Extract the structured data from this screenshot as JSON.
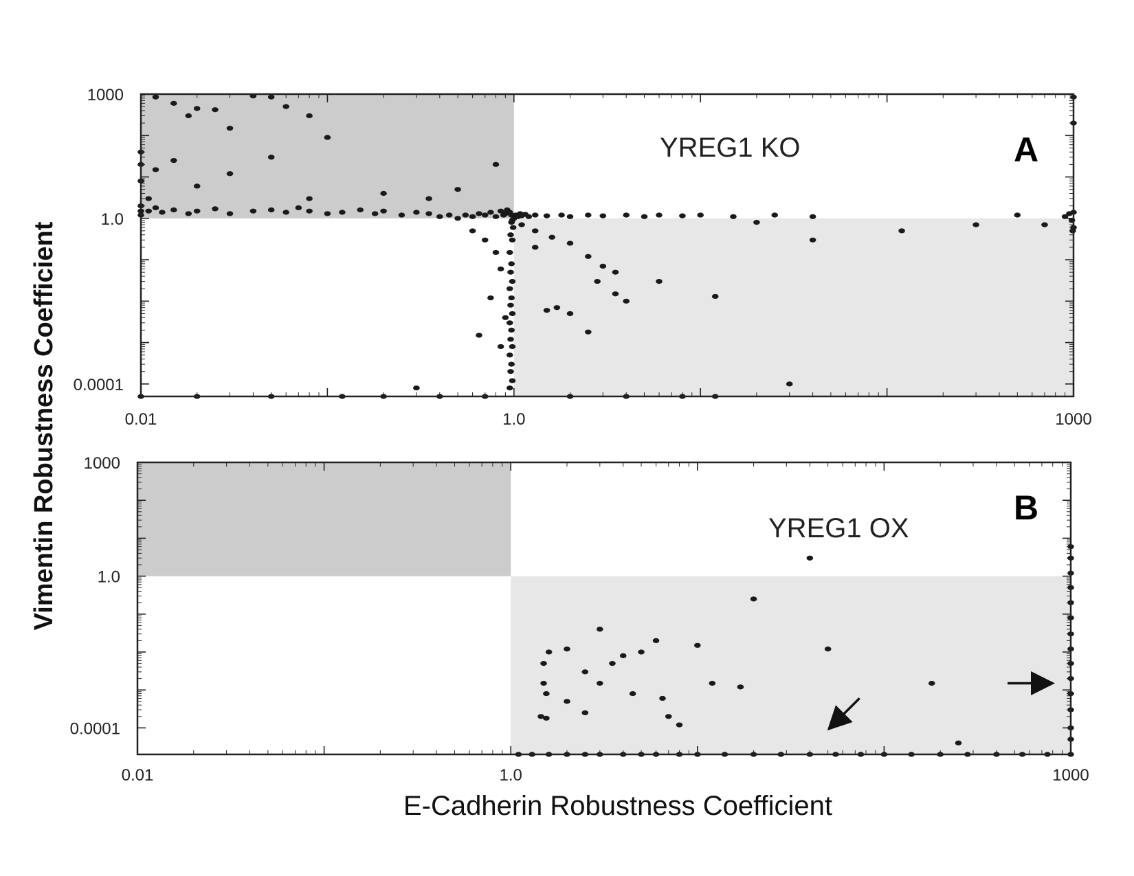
{
  "figure": {
    "xlabel": "E-Cadherin Robustness Coefficient",
    "ylabel": "Vimentin Robustness Coefficient"
  },
  "colors": {
    "quadrant_upper_left": "#cccccc",
    "quadrant_lower_right": "#e6e7e6",
    "points": "#1a1a1a",
    "axes": "#222222"
  },
  "chart_data": [
    {
      "type": "scatter",
      "panel": "A",
      "title": "YREG1 KO",
      "x_scale": "log",
      "y_scale": "log",
      "xlim": [
        0.01,
        1000
      ],
      "ylim": [
        5e-05,
        1000
      ],
      "x_tick_labels": [
        "0.01",
        "1.0",
        "1000"
      ],
      "x_tick_values": [
        0.01,
        1,
        1000
      ],
      "y_tick_labels": [
        "1000",
        "1.0",
        "0.0001"
      ],
      "y_tick_values": [
        1000,
        1,
        0.0001
      ],
      "shaded_regions": [
        {
          "x": [
            0.01,
            1
          ],
          "y": [
            1,
            1000
          ],
          "shade": "dark"
        },
        {
          "x": [
            1,
            1000
          ],
          "y": [
            5e-05,
            1
          ],
          "shade": "light"
        }
      ],
      "points": [
        [
          0.012,
          850
        ],
        [
          0.015,
          600
        ],
        [
          0.018,
          300
        ],
        [
          0.02,
          450
        ],
        [
          0.025,
          420
        ],
        [
          0.03,
          150
        ],
        [
          0.04,
          900
        ],
        [
          0.05,
          850
        ],
        [
          0.06,
          500
        ],
        [
          0.08,
          300
        ],
        [
          0.1,
          90
        ],
        [
          0.012,
          15
        ],
        [
          0.015,
          25
        ],
        [
          0.02,
          6
        ],
        [
          0.03,
          12
        ],
        [
          0.05,
          30
        ],
        [
          0.08,
          3
        ],
        [
          0.2,
          4
        ],
        [
          0.35,
          3
        ],
        [
          0.5,
          5
        ],
        [
          0.8,
          20
        ],
        [
          0.011,
          1.5
        ],
        [
          0.012,
          1.8
        ],
        [
          0.013,
          1.4
        ],
        [
          0.015,
          1.6
        ],
        [
          0.018,
          1.3
        ],
        [
          0.02,
          1.5
        ],
        [
          0.025,
          1.7
        ],
        [
          0.03,
          1.3
        ],
        [
          0.04,
          1.5
        ],
        [
          0.05,
          1.6
        ],
        [
          0.06,
          1.4
        ],
        [
          0.07,
          1.8
        ],
        [
          0.08,
          1.5
        ],
        [
          0.1,
          1.3
        ],
        [
          0.12,
          1.4
        ],
        [
          0.15,
          1.6
        ],
        [
          0.18,
          1.3
        ],
        [
          0.2,
          1.5
        ],
        [
          0.25,
          1.2
        ],
        [
          0.3,
          1.4
        ],
        [
          0.35,
          1.3
        ],
        [
          0.4,
          1.1
        ],
        [
          0.45,
          1.2
        ],
        [
          0.5,
          1.0
        ],
        [
          0.55,
          1.2
        ],
        [
          0.6,
          1.1
        ],
        [
          0.65,
          1.3
        ],
        [
          0.7,
          1.2
        ],
        [
          0.75,
          1.4
        ],
        [
          0.8,
          1.1
        ],
        [
          0.85,
          1.5
        ],
        [
          0.88,
          1.2
        ],
        [
          0.9,
          1.3
        ],
        [
          0.92,
          1.6
        ],
        [
          0.95,
          1.4
        ],
        [
          0.97,
          1.2
        ],
        [
          0.98,
          0.9
        ],
        [
          0.99,
          0.6
        ],
        [
          1.0,
          1.0
        ],
        [
          0.97,
          0.8
        ],
        [
          0.96,
          0.4
        ],
        [
          0.98,
          0.3
        ],
        [
          0.95,
          0.15
        ],
        [
          0.97,
          0.08
        ],
        [
          0.96,
          0.05
        ],
        [
          0.98,
          0.03
        ],
        [
          0.95,
          0.02
        ],
        [
          0.97,
          0.012
        ],
        [
          0.96,
          0.008
        ],
        [
          0.98,
          0.005
        ],
        [
          0.95,
          0.003
        ],
        [
          0.97,
          0.002
        ],
        [
          0.96,
          0.0012
        ],
        [
          0.98,
          0.0008
        ],
        [
          0.95,
          0.0005
        ],
        [
          0.97,
          0.0003
        ],
        [
          0.96,
          0.0002
        ],
        [
          0.98,
          0.00012
        ],
        [
          0.95,
          8e-05
        ],
        [
          0.6,
          0.5
        ],
        [
          0.7,
          0.3
        ],
        [
          0.8,
          0.15
        ],
        [
          0.85,
          0.06
        ],
        [
          0.75,
          0.012
        ],
        [
          0.9,
          0.004
        ],
        [
          0.65,
          0.0015
        ],
        [
          0.85,
          0.0008
        ],
        [
          1.02,
          1.2
        ],
        [
          1.05,
          1.1
        ],
        [
          1.08,
          1.3
        ],
        [
          1.1,
          1.15
        ],
        [
          1.15,
          1.25
        ],
        [
          1.2,
          1.1
        ],
        [
          1.3,
          1.2
        ],
        [
          1.5,
          1.15
        ],
        [
          1.8,
          1.2
        ],
        [
          2.0,
          1.1
        ],
        [
          2.5,
          1.2
        ],
        [
          3.0,
          1.15
        ],
        [
          4.0,
          1.2
        ],
        [
          5.0,
          1.1
        ],
        [
          6.0,
          1.2
        ],
        [
          8.0,
          1.15
        ],
        [
          10.0,
          1.2
        ],
        [
          15.0,
          1.1
        ],
        [
          25.0,
          1.2
        ],
        [
          40.0,
          1.1
        ],
        [
          1.1,
          0.7
        ],
        [
          1.3,
          0.5
        ],
        [
          1.6,
          0.35
        ],
        [
          1.3,
          0.2
        ],
        [
          2.0,
          0.25
        ],
        [
          2.5,
          0.12
        ],
        [
          3.0,
          0.07
        ],
        [
          3.5,
          0.05
        ],
        [
          2.8,
          0.03
        ],
        [
          3.5,
          0.015
        ],
        [
          4.0,
          0.01
        ],
        [
          1.7,
          0.007
        ],
        [
          2.0,
          0.005
        ],
        [
          6.0,
          0.03
        ],
        [
          12.0,
          0.013
        ],
        [
          1.5,
          0.006
        ],
        [
          2.5,
          0.0018
        ],
        [
          30.0,
          0.0001
        ],
        [
          20.0,
          0.8
        ],
        [
          40.0,
          0.3
        ],
        [
          120.0,
          0.5
        ],
        [
          300.0,
          0.7
        ],
        [
          500.0,
          1.2
        ],
        [
          700.0,
          0.7
        ],
        [
          900.0,
          1.1
        ],
        [
          950.0,
          1.3
        ],
        [
          980.0,
          0.9
        ],
        [
          990.0,
          0.5
        ],
        [
          1000.0,
          1.4
        ],
        [
          1000.0,
          0.6
        ],
        [
          1000.0,
          850
        ],
        [
          1000.0,
          200
        ],
        [
          0.3,
          8e-05
        ],
        [
          0.01,
          5e-05
        ],
        [
          0.02,
          5e-05
        ],
        [
          0.05,
          5e-05
        ],
        [
          0.12,
          5e-05
        ],
        [
          0.2,
          5e-05
        ],
        [
          0.4,
          5e-05
        ],
        [
          0.7,
          5e-05
        ],
        [
          2.0,
          5e-05
        ],
        [
          4.0,
          5e-05
        ],
        [
          8.0,
          5e-05
        ],
        [
          12.0,
          5e-05
        ],
        [
          0.011,
          3
        ],
        [
          0.01,
          8
        ],
        [
          0.01,
          20
        ],
        [
          0.01,
          40
        ],
        [
          0.01,
          2
        ],
        [
          0.01,
          1.5
        ],
        [
          0.01,
          1.2
        ]
      ]
    },
    {
      "type": "scatter",
      "panel": "B",
      "title": "YREG1 OX",
      "x_scale": "log",
      "y_scale": "log",
      "xlim": [
        0.01,
        1000
      ],
      "ylim": [
        2e-05,
        1000
      ],
      "x_tick_labels": [
        "0.01",
        "1.0",
        "1000"
      ],
      "x_tick_values": [
        0.01,
        1,
        1000
      ],
      "y_tick_labels": [
        "1000",
        "1.0",
        "0.0001"
      ],
      "y_tick_values": [
        1000,
        1,
        0.0001
      ],
      "shaded_regions": [
        {
          "x": [
            0.01,
            1
          ],
          "y": [
            1,
            1000
          ],
          "shade": "dark"
        },
        {
          "x": [
            1,
            1000
          ],
          "y": [
            2e-05,
            1
          ],
          "shade": "light"
        }
      ],
      "points": [
        [
          40.0,
          3
        ],
        [
          20.0,
          0.25
        ],
        [
          50.0,
          0.012
        ],
        [
          10.0,
          0.015
        ],
        [
          6.0,
          0.02
        ],
        [
          5.0,
          0.01
        ],
        [
          4.0,
          0.008
        ],
        [
          3.0,
          0.04
        ],
        [
          3.5,
          0.005
        ],
        [
          3.0,
          0.0015
        ],
        [
          2.0,
          0.012
        ],
        [
          2.5,
          0.003
        ],
        [
          2.0,
          0.0005
        ],
        [
          1.6,
          0.01
        ],
        [
          1.5,
          0.005
        ],
        [
          1.5,
          0.0015
        ],
        [
          1.55,
          0.0008
        ],
        [
          1.45,
          0.0002
        ],
        [
          1.55,
          0.00018
        ],
        [
          2.5,
          0.00025
        ],
        [
          4.5,
          0.0008
        ],
        [
          6.5,
          0.0006
        ],
        [
          7.0,
          0.0002
        ],
        [
          8.0,
          0.00012
        ],
        [
          12.0,
          0.0015
        ],
        [
          17.0,
          0.0012
        ],
        [
          180.0,
          0.0015
        ],
        [
          250.0,
          4e-05
        ],
        [
          1.1,
          2e-05
        ],
        [
          1.3,
          2e-05
        ],
        [
          1.6,
          2e-05
        ],
        [
          2.0,
          2e-05
        ],
        [
          2.5,
          2e-05
        ],
        [
          3.0,
          2e-05
        ],
        [
          4.0,
          2e-05
        ],
        [
          5.0,
          2e-05
        ],
        [
          6.0,
          2e-05
        ],
        [
          8.0,
          2e-05
        ],
        [
          10.0,
          2e-05
        ],
        [
          14.0,
          2e-05
        ],
        [
          20.0,
          2e-05
        ],
        [
          28.0,
          2e-05
        ],
        [
          40.0,
          2e-05
        ],
        [
          55.0,
          2e-05
        ],
        [
          75.0,
          2e-05
        ],
        [
          100.0,
          2e-05
        ],
        [
          140.0,
          2e-05
        ],
        [
          200.0,
          2e-05
        ],
        [
          280.0,
          2e-05
        ],
        [
          400.0,
          2e-05
        ],
        [
          550.0,
          2e-05
        ],
        [
          750.0,
          2e-05
        ],
        [
          1000.0,
          2e-05
        ],
        [
          1000.0,
          5e-05
        ],
        [
          1000.0,
          0.0001
        ],
        [
          1000.0,
          0.0003
        ],
        [
          1000.0,
          0.0008
        ],
        [
          1000.0,
          0.002
        ],
        [
          1000.0,
          0.005
        ],
        [
          1000.0,
          0.012
        ],
        [
          1000.0,
          0.03
        ],
        [
          1000.0,
          0.08
        ],
        [
          1000.0,
          0.2
        ],
        [
          1000.0,
          0.5
        ],
        [
          1000.0,
          1.2
        ],
        [
          1000.0,
          3
        ],
        [
          1000.0,
          6
        ]
      ],
      "annotations": [
        {
          "type": "arrow",
          "points_to": [
            50.0,
            3e-05
          ]
        },
        {
          "type": "arrow",
          "points_to": [
            1000.0,
            0.0015
          ]
        }
      ]
    }
  ]
}
